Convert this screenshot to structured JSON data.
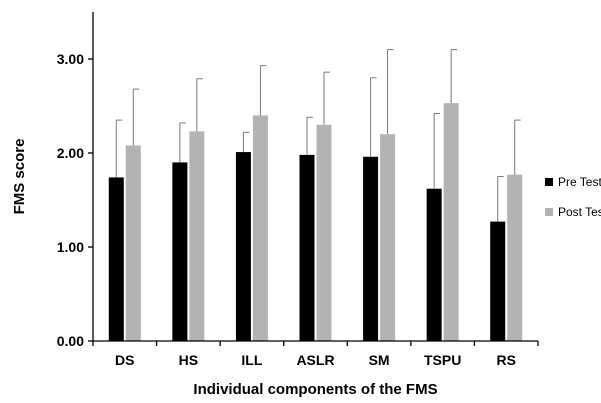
{
  "chart_data": {
    "type": "bar",
    "title": "",
    "xlabel": "Individual components of the FMS",
    "ylabel": "FMS score",
    "categories": [
      "DS",
      "HS",
      "ILL",
      "ASLR",
      "SM",
      "TSPU",
      "RS"
    ],
    "ylim": [
      0,
      3.5
    ],
    "yticks": [
      "0.00",
      "1.00",
      "2.00",
      "3.00"
    ],
    "series": [
      {
        "name": "Pre Test",
        "color": "#000000",
        "values": [
          1.74,
          1.9,
          2.01,
          1.98,
          1.96,
          1.62,
          1.27
        ],
        "errors": [
          0.61,
          0.42,
          0.21,
          0.4,
          0.84,
          0.8,
          0.48
        ]
      },
      {
        "name": "Post Test",
        "color": "#b3b3b3",
        "values": [
          2.08,
          2.23,
          2.4,
          2.3,
          2.2,
          2.53,
          1.77
        ],
        "errors": [
          0.6,
          0.56,
          0.53,
          0.56,
          0.9,
          0.57,
          0.58
        ]
      }
    ],
    "legend_position": "right",
    "grid": false
  }
}
